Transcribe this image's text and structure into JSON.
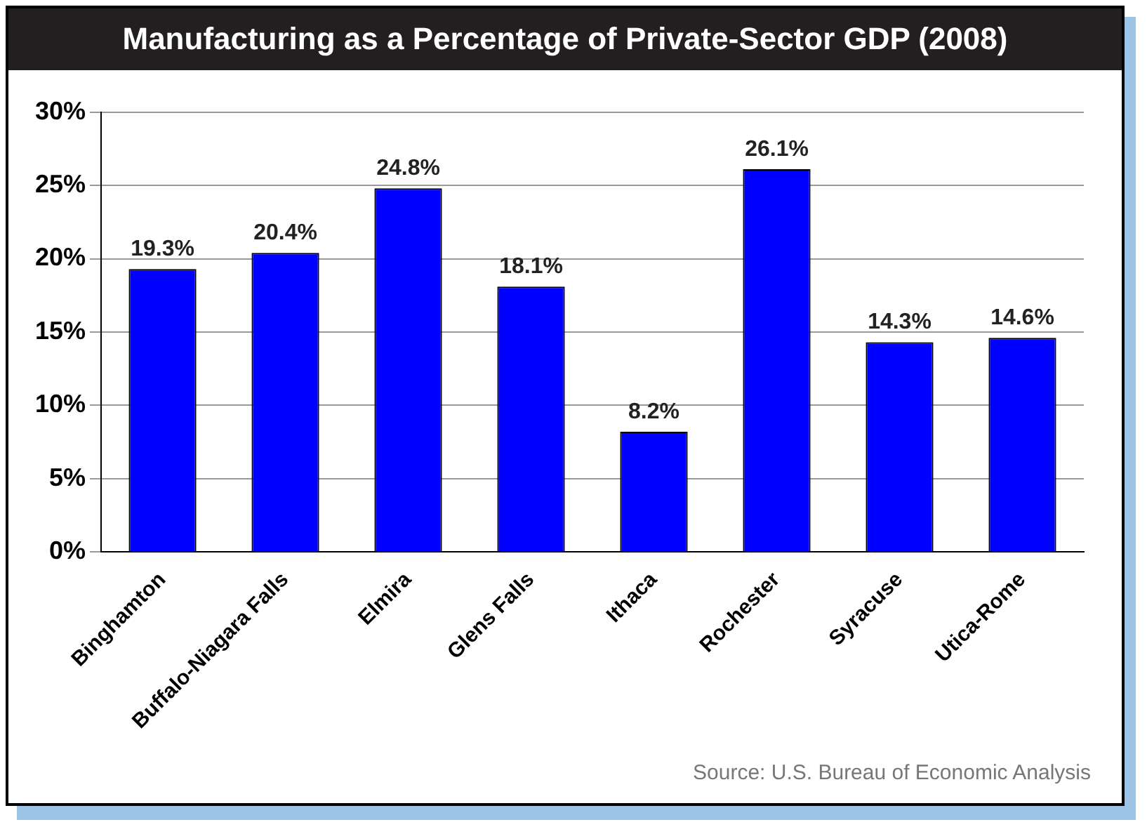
{
  "chart_data": {
    "type": "bar",
    "title": "Manufacturing as a Percentage of Private-Sector GDP (2008)",
    "categories": [
      "Binghamton",
      "Buffalo-Niagara Falls",
      "Elmira",
      "Glens Falls",
      "Ithaca",
      "Rochester",
      "Syracuse",
      "Utica-Rome"
    ],
    "values": [
      19.3,
      20.4,
      24.8,
      18.1,
      8.2,
      26.1,
      14.3,
      14.6
    ],
    "value_labels": [
      "19.3%",
      "20.4%",
      "24.8%",
      "18.1%",
      "8.2%",
      "26.1%",
      "14.3%",
      "14.6%"
    ],
    "color": "#0000ff",
    "ylim": [
      0,
      30
    ],
    "yticks": [
      {
        "value": 0,
        "label": "0%"
      },
      {
        "value": 5,
        "label": "5%"
      },
      {
        "value": 10,
        "label": "10%"
      },
      {
        "value": 15,
        "label": "15%"
      },
      {
        "value": 20,
        "label": "20%"
      },
      {
        "value": 25,
        "label": "25%"
      },
      {
        "value": 30,
        "label": "30%"
      }
    ],
    "grid": "y",
    "legend": false,
    "annotations": [
      "Source: U.S. Bureau of Economic Analysis"
    ]
  }
}
